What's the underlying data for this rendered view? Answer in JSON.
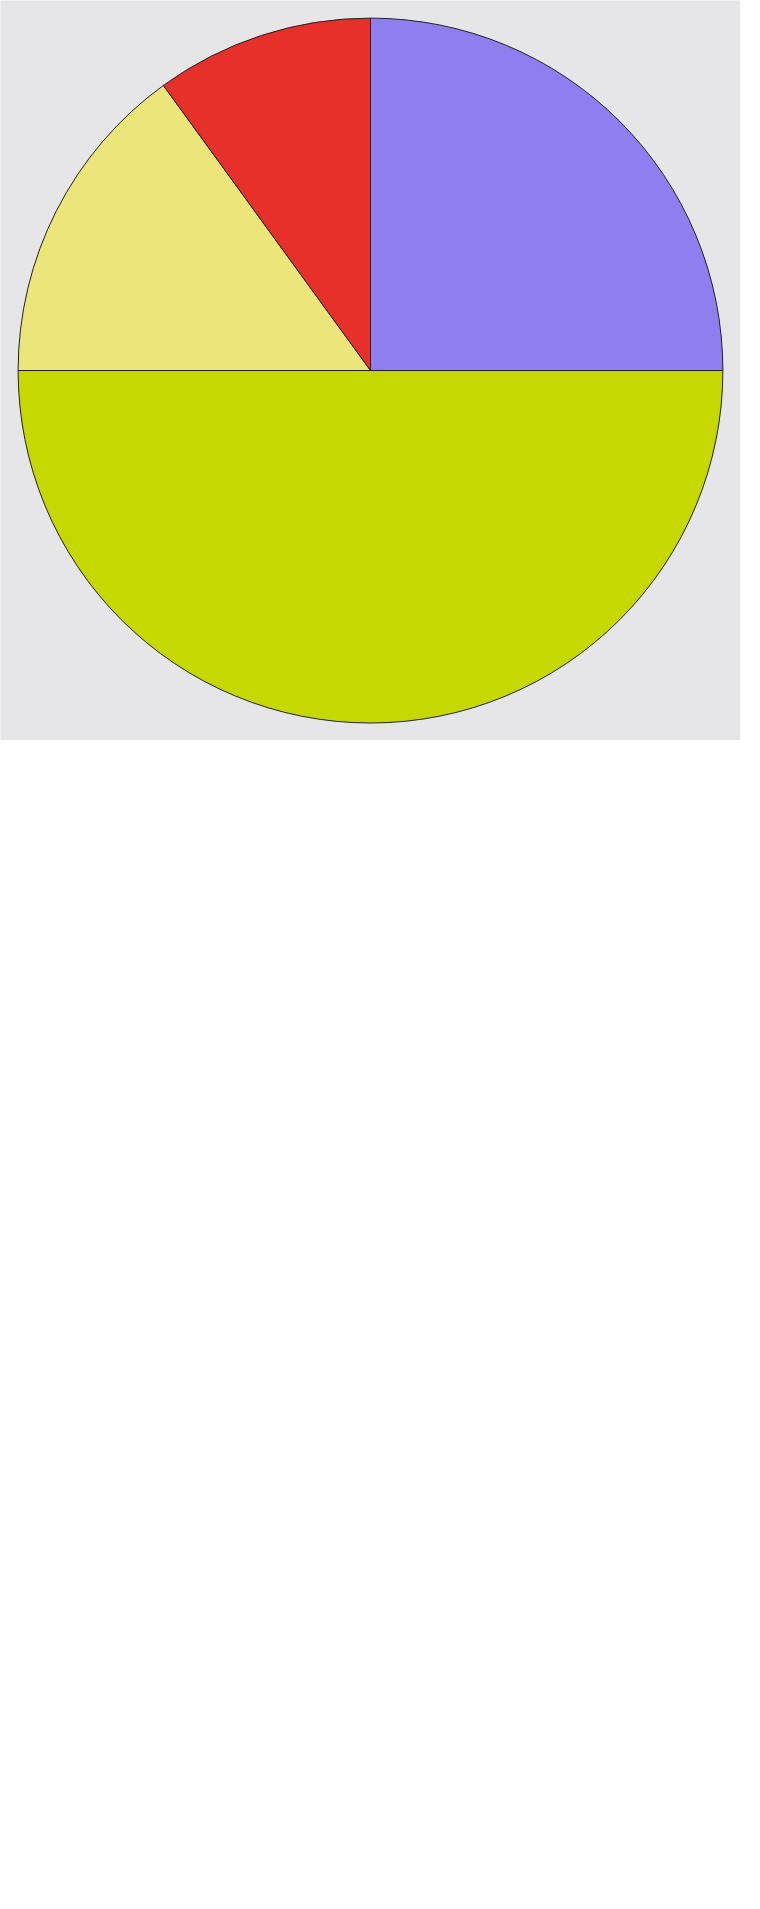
{
  "chart_data": {
    "type": "pie",
    "categories": [
      null,
      null,
      null,
      null
    ],
    "values": [
      25,
      50,
      15,
      10
    ],
    "colors": [
      "#8f7ef0",
      "#c5d800",
      "#ebe57a",
      "#e8302a"
    ]
  }
}
